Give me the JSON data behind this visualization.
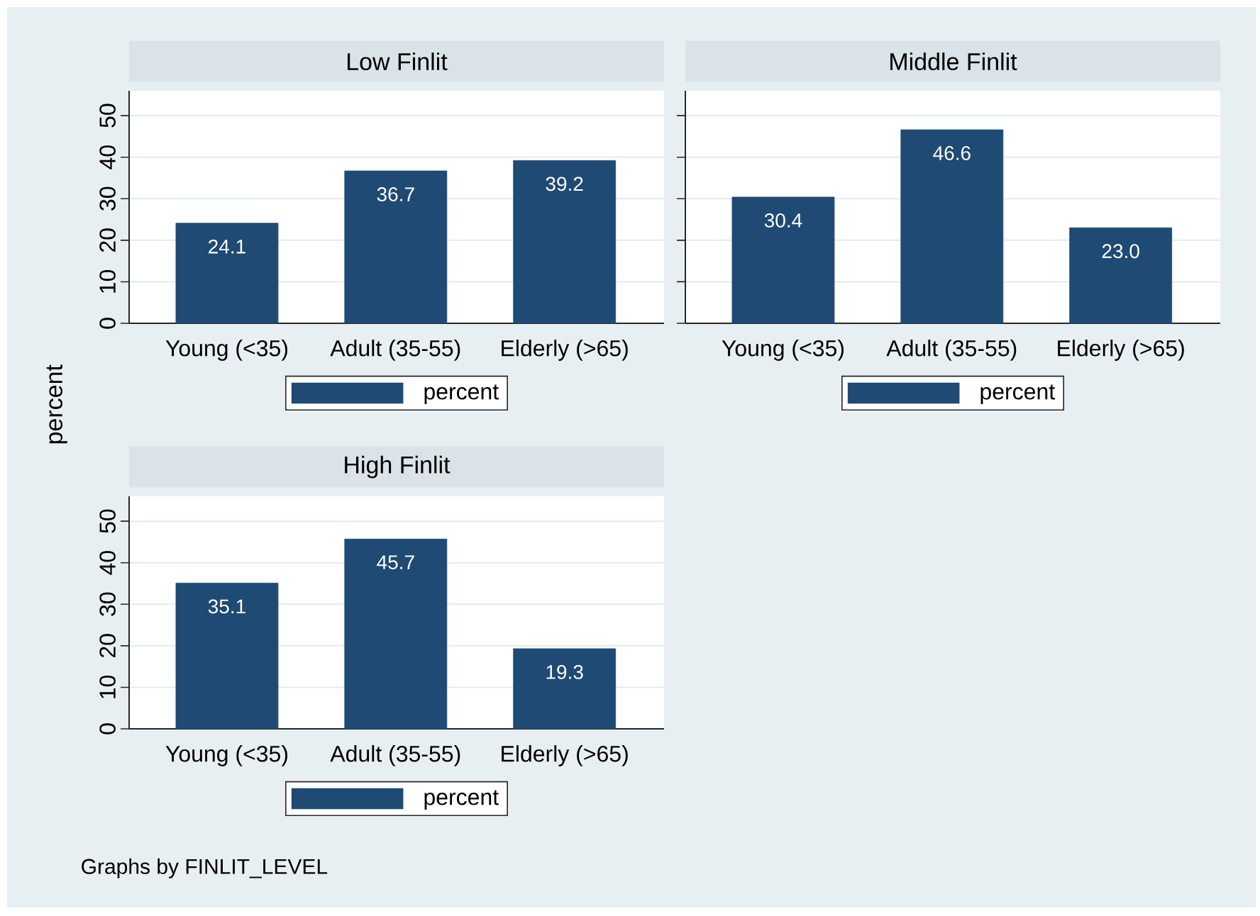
{
  "chart_data": [
    {
      "type": "bar",
      "title": "Low Finlit",
      "ylabel": "percent",
      "categories": [
        "Young (<35)",
        "Adult (35-55)",
        "Elderly (>65)"
      ],
      "series": [
        {
          "name": "percent",
          "color": "#1f4a73",
          "values": [
            24.1,
            36.7,
            39.2
          ],
          "value_labels": [
            "24.1",
            "36.7",
            "39.2"
          ]
        }
      ],
      "ylim": [
        0,
        56
      ],
      "yticks": [
        0,
        10,
        20,
        30,
        40,
        50
      ],
      "grid": "y",
      "legend": "bottom"
    },
    {
      "type": "bar",
      "title": "Middle Finlit",
      "categories": [
        "Young (<35)",
        "Adult (35-55)",
        "Elderly (>65)"
      ],
      "series": [
        {
          "name": "percent",
          "color": "#1f4a73",
          "values": [
            30.4,
            46.6,
            23.0
          ],
          "value_labels": [
            "30.4",
            "46.6",
            "23.0"
          ]
        }
      ],
      "ylim": [
        0,
        56
      ],
      "yticks": [
        0,
        10,
        20,
        30,
        40,
        50
      ],
      "grid": "y",
      "legend": "bottom",
      "tick_labels": "x"
    },
    {
      "type": "bar",
      "title": "High Finlit",
      "categories": [
        "Young (<35)",
        "Adult (35-55)",
        "Elderly (>65)"
      ],
      "series": [
        {
          "name": "percent",
          "color": "#1f4a73",
          "values": [
            35.1,
            45.7,
            19.3
          ],
          "value_labels": [
            "35.1",
            "45.7",
            "19.3"
          ]
        }
      ],
      "ylim": [
        0,
        56
      ],
      "yticks": [
        0,
        10,
        20,
        30,
        40,
        50
      ],
      "grid": "y",
      "legend": "bottom",
      "annotations": [
        "Graphs by FINLIT_LEVEL"
      ]
    }
  ]
}
